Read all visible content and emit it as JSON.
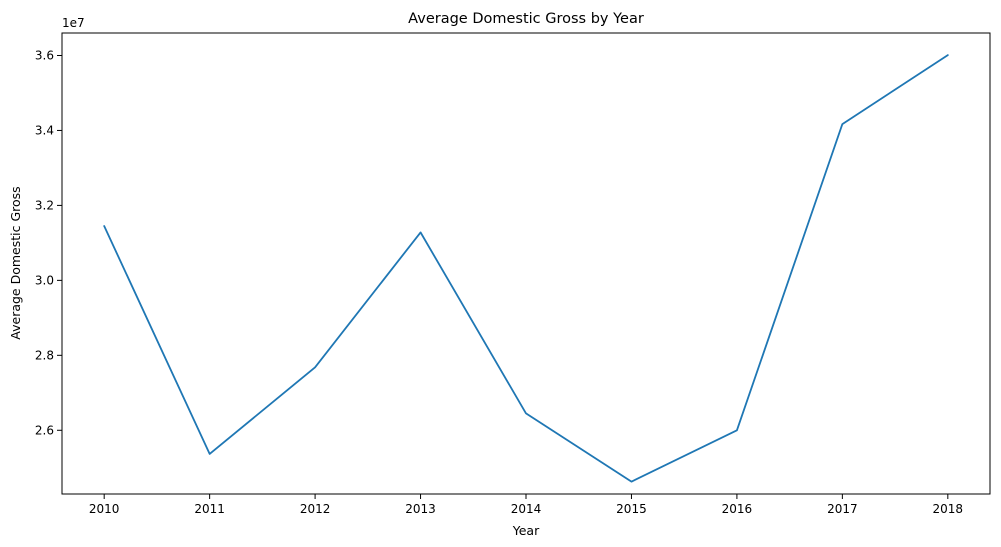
{
  "chart_data": {
    "type": "line",
    "title": "Average Domestic Gross by Year",
    "xlabel": "Year",
    "ylabel": "Average Domestic Gross",
    "y_offset_label": "1e7",
    "x": [
      2010,
      2011,
      2012,
      2013,
      2014,
      2015,
      2016,
      2017,
      2018
    ],
    "x_tick_labels": [
      "2010",
      "2011",
      "2012",
      "2013",
      "2014",
      "2015",
      "2016",
      "2017",
      "2018"
    ],
    "y_ticks": [
      26000000,
      28000000,
      30000000,
      32000000,
      34000000,
      36000000
    ],
    "y_tick_labels": [
      "2.6",
      "2.8",
      "3.0",
      "3.2",
      "3.4",
      "3.6"
    ],
    "xlim": [
      2009.6,
      2018.4
    ],
    "ylim": [
      24300000,
      36600000
    ],
    "grid": false,
    "series": [
      {
        "color": "#1f77b4",
        "values": [
          31450000,
          25370000,
          27680000,
          31280000,
          26450000,
          24630000,
          26000000,
          34170000,
          36010000
        ]
      }
    ]
  }
}
